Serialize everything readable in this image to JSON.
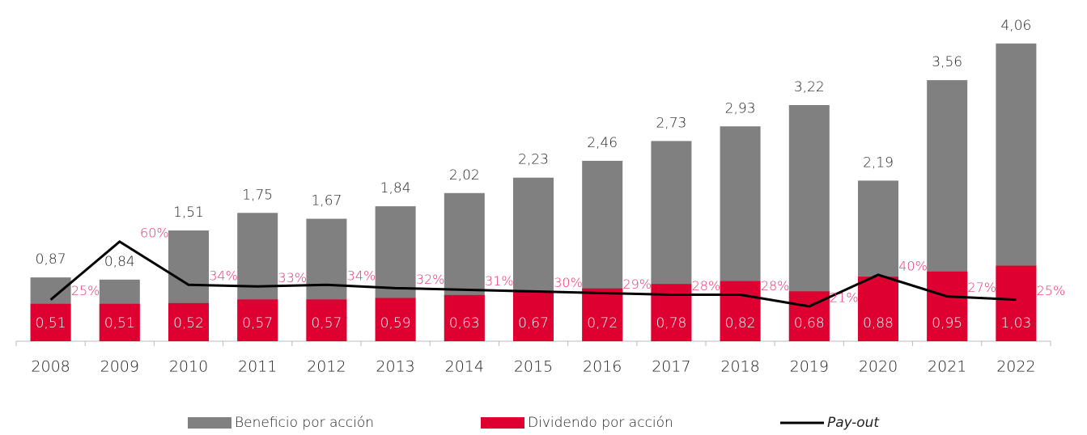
{
  "chart_data": {
    "type": "bar",
    "categories": [
      "2008",
      "2009",
      "2010",
      "2011",
      "2012",
      "2013",
      "2014",
      "2015",
      "2016",
      "2017",
      "2018",
      "2019",
      "2020",
      "2021",
      "2022"
    ],
    "series": [
      {
        "name": "Beneficio por acción",
        "color": "#808080",
        "values": [
          0.87,
          0.84,
          1.51,
          1.75,
          1.67,
          1.84,
          2.02,
          2.23,
          2.46,
          2.73,
          2.93,
          3.22,
          2.19,
          3.56,
          4.06
        ],
        "value_labels": [
          "0,87",
          "0,84",
          "1,51",
          "1,75",
          "1,67",
          "1,84",
          "2,02",
          "2,23",
          "2,46",
          "2,73",
          "2,93",
          "3,22",
          "2,19",
          "3,56",
          "4,06"
        ]
      },
      {
        "name": "Dividendo por acción",
        "color": "#de0030",
        "values": [
          0.51,
          0.51,
          0.52,
          0.57,
          0.57,
          0.59,
          0.63,
          0.67,
          0.72,
          0.78,
          0.82,
          0.68,
          0.88,
          0.95,
          1.03
        ],
        "value_labels": [
          "0,51",
          "0,51",
          "0,52",
          "0,57",
          "0,57",
          "0,59",
          "0,63",
          "0,67",
          "0,72",
          "0,78",
          "0,82",
          "0,68",
          "0,88",
          "0,95",
          "1,03"
        ]
      },
      {
        "name": "Pay-out",
        "color": "#000000",
        "axis": "y2",
        "type": "line",
        "values": [
          25,
          60,
          34,
          33,
          34,
          32,
          31,
          30,
          29,
          28,
          28,
          21,
          40,
          27,
          25
        ],
        "value_labels": [
          "25%",
          "60%",
          "34%",
          "33%",
          "34%",
          "32%",
          "31%",
          "30%",
          "29%",
          "28%",
          "28%",
          "21%",
          "40%",
          "27%",
          "25%"
        ]
      }
    ],
    "ylim": [
      0,
      4.3
    ],
    "y2lim": [
      0,
      190
    ],
    "label_color": "#e8336a"
  }
}
